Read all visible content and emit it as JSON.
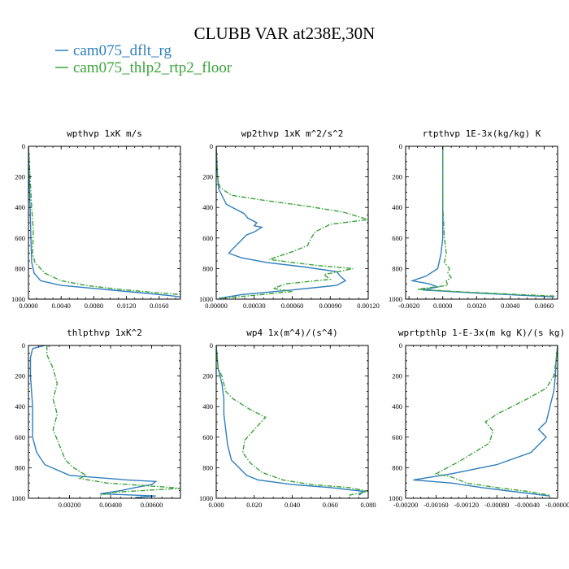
{
  "figure": {
    "title": "CLUBB VAR at238E,30N",
    "legend": [
      {
        "label": "cam075_dflt_rg",
        "color": "#2f7fbc",
        "dash": "solid"
      },
      {
        "label": "cam075_thlp2_rtp2_floor",
        "color": "#3aa33a",
        "dash": "dashdot"
      }
    ]
  },
  "chart_data": [
    {
      "type": "line",
      "title": "wpthvp  1xK m/s",
      "xlim": [
        0,
        0.0186
      ],
      "ylim": [
        1000,
        0
      ],
      "xticks": [
        0,
        0.004,
        0.008,
        0.012,
        0.016
      ],
      "xtick_labels": [
        "0.0000",
        "0.0040",
        "0.0080",
        "0.0120",
        "0.0160"
      ],
      "yticks": [
        0,
        200,
        400,
        600,
        800,
        1000
      ],
      "ytick_labels": [
        "0",
        "200",
        "400",
        "600",
        "800",
        "1000"
      ],
      "series": [
        {
          "name": "cam075_dflt_rg",
          "points": [
            [
              0,
              0
            ],
            [
              0.0001,
              200
            ],
            [
              0.0002,
              400
            ],
            [
              0.0003,
              600
            ],
            [
              0.0004,
              760
            ],
            [
              0.0007,
              830
            ],
            [
              0.0015,
              880
            ],
            [
              0.004,
              910
            ],
            [
              0.008,
              930
            ],
            [
              0.013,
              955
            ],
            [
              0.017,
              975
            ],
            [
              0.0186,
              985
            ]
          ]
        },
        {
          "name": "cam075_thlp2_rtp2_floor",
          "points": [
            [
              0,
              0
            ],
            [
              0.0002,
              200
            ],
            [
              0.0004,
              400
            ],
            [
              0.0006,
              550
            ],
            [
              0.0005,
              700
            ],
            [
              0.0008,
              760
            ],
            [
              0.002,
              830
            ],
            [
              0.004,
              880
            ],
            [
              0.007,
              910
            ],
            [
              0.011,
              935
            ],
            [
              0.015,
              955
            ],
            [
              0.0186,
              970
            ]
          ]
        }
      ]
    },
    {
      "type": "line",
      "title": "wp2thvp  1xK m^2/s^2",
      "xlim": [
        0,
        0.0012
      ],
      "ylim": [
        1000,
        0
      ],
      "xticks": [
        0,
        0.0003,
        0.0006,
        0.0009,
        0.0012
      ],
      "xtick_labels": [
        "0.00000",
        "0.00030",
        "0.00060",
        "0.00090",
        "0.00120"
      ],
      "yticks": [
        0,
        200,
        400,
        600,
        800,
        1000
      ],
      "ytick_labels": [
        "0",
        "200",
        "400",
        "600",
        "800",
        "1000"
      ],
      "series": [
        {
          "name": "cam075_dflt_rg",
          "points": [
            [
              0,
              0
            ],
            [
              1e-05,
              200
            ],
            [
              2e-05,
              280
            ],
            [
              8e-05,
              380
            ],
            [
              0.00022,
              440
            ],
            [
              0.00025,
              470
            ],
            [
              0.00032,
              500
            ],
            [
              0.0003,
              520
            ],
            [
              0.00036,
              530
            ],
            [
              0.0003,
              560
            ],
            [
              0.00024,
              580
            ],
            [
              0.00018,
              630
            ],
            [
              0.00012,
              680
            ],
            [
              0.0001,
              700
            ],
            [
              0.0002,
              730
            ],
            [
              0.0004,
              760
            ],
            [
              0.0007,
              790
            ],
            [
              0.00095,
              820
            ],
            [
              0.00098,
              850
            ],
            [
              0.00102,
              880
            ],
            [
              0.00095,
              910
            ],
            [
              0.0006,
              940
            ],
            [
              0.0002,
              970
            ],
            [
              2e-05,
              995
            ]
          ]
        },
        {
          "name": "cam075_thlp2_rtp2_floor",
          "points": [
            [
              0,
              0
            ],
            [
              1e-05,
              200
            ],
            [
              3e-05,
              270
            ],
            [
              0.00012,
              320
            ],
            [
              0.00035,
              350
            ],
            [
              0.0007,
              390
            ],
            [
              0.001,
              430
            ],
            [
              0.0012,
              480
            ],
            [
              0.0009,
              510
            ],
            [
              0.00078,
              560
            ],
            [
              0.00075,
              600
            ],
            [
              0.00072,
              650
            ],
            [
              0.0006,
              690
            ],
            [
              0.00042,
              740
            ],
            [
              0.0006,
              760
            ],
            [
              0.0008,
              780
            ],
            [
              0.00108,
              800
            ],
            [
              0.00085,
              840
            ],
            [
              0.0009,
              870
            ],
            [
              0.00055,
              900
            ],
            [
              0.00045,
              930
            ],
            [
              0.0006,
              950
            ],
            [
              0.0003,
              975
            ],
            [
              3e-05,
              995
            ]
          ]
        }
      ]
    },
    {
      "type": "line",
      "title": "rtpthvp  1E-3x(kg/kg) K",
      "xlim": [
        -0.0022,
        0.0068
      ],
      "ylim": [
        1000,
        0
      ],
      "xticks": [
        -0.002,
        0,
        0.002,
        0.004,
        0.006
      ],
      "xtick_labels": [
        "-0.0020",
        "0.0000",
        "0.0020",
        "0.0040",
        "0.0060"
      ],
      "yticks": [
        0,
        200,
        400,
        600,
        800,
        1000
      ],
      "ytick_labels": [
        "0",
        "200",
        "400",
        "600",
        "800",
        "1000"
      ],
      "series": [
        {
          "name": "cam075_dflt_rg",
          "points": [
            [
              0,
              0
            ],
            [
              0,
              400
            ],
            [
              0,
              600
            ],
            [
              -0.0001,
              700
            ],
            [
              -0.0003,
              800
            ],
            [
              -0.001,
              850
            ],
            [
              -0.0018,
              880
            ],
            [
              -0.0008,
              900
            ],
            [
              -0.0003,
              920
            ],
            [
              -0.0012,
              940
            ],
            [
              0.002,
              960
            ],
            [
              0.0066,
              985
            ]
          ]
        },
        {
          "name": "cam075_thlp2_rtp2_floor",
          "points": [
            [
              0,
              0
            ],
            [
              0,
              400
            ],
            [
              0.0001,
              600
            ],
            [
              0.0002,
              700
            ],
            [
              0.0001,
              760
            ],
            [
              0.0004,
              800
            ],
            [
              0.0003,
              830
            ],
            [
              0.0005,
              860
            ],
            [
              0.0002,
              880
            ],
            [
              0.0003,
              910
            ],
            [
              -0.0015,
              935
            ],
            [
              0.0015,
              955
            ],
            [
              0.0066,
              980
            ]
          ]
        }
      ]
    },
    {
      "type": "line",
      "title": "thlpthvp  1xK^2",
      "xlim": [
        0,
        0.0074
      ],
      "ylim": [
        1000,
        0
      ],
      "xticks": [
        0.002,
        0.004,
        0.006
      ],
      "xtick_labels": [
        "0.00200",
        "0.00400",
        "0.00600"
      ],
      "yticks": [
        0,
        200,
        400,
        600,
        800,
        1000
      ],
      "ytick_labels": [
        "0",
        "200",
        "400",
        "600",
        "800",
        "1000"
      ],
      "series": [
        {
          "name": "cam075_dflt_rg",
          "points": [
            [
              0.0008,
              0
            ],
            [
              0.0002,
              20
            ],
            [
              0.0001,
              80
            ],
            [
              0.0001,
              200
            ],
            [
              0.0002,
              400
            ],
            [
              0.0002,
              600
            ],
            [
              0.0004,
              700
            ],
            [
              0.0008,
              780
            ],
            [
              0.002,
              850
            ],
            [
              0.0048,
              880
            ],
            [
              0.0062,
              890
            ],
            [
              0.006,
              910
            ],
            [
              0.0052,
              930
            ],
            [
              0.0045,
              950
            ],
            [
              0.0035,
              970
            ],
            [
              0.0062,
              985
            ],
            [
              0.0052,
              995
            ]
          ]
        },
        {
          "name": "cam075_thlp2_rtp2_floor",
          "points": [
            [
              0.0009,
              0
            ],
            [
              0.0009,
              60
            ],
            [
              0.0012,
              150
            ],
            [
              0.0014,
              250
            ],
            [
              0.0012,
              350
            ],
            [
              0.0014,
              450
            ],
            [
              0.0012,
              550
            ],
            [
              0.0015,
              650
            ],
            [
              0.0018,
              750
            ],
            [
              0.0022,
              800
            ],
            [
              0.0028,
              850
            ],
            [
              0.0025,
              870
            ],
            [
              0.0038,
              900
            ],
            [
              0.0065,
              925
            ],
            [
              0.0074,
              935
            ],
            [
              0.0042,
              960
            ],
            [
              0.0035,
              980
            ]
          ]
        }
      ]
    },
    {
      "type": "line",
      "title": "wp4  1x(m^4)/(s^4)",
      "xlim": [
        0,
        0.08
      ],
      "ylim": [
        1000,
        0
      ],
      "xticks": [
        0,
        0.02,
        0.04,
        0.06,
        0.08
      ],
      "xtick_labels": [
        "0.000",
        "0.020",
        "0.040",
        "0.060",
        "0.080"
      ],
      "yticks": [
        0,
        200,
        400,
        600,
        800,
        1000
      ],
      "ytick_labels": [
        "0",
        "200",
        "400",
        "600",
        "800",
        "1000"
      ],
      "series": [
        {
          "name": "cam075_dflt_rg",
          "points": [
            [
              0,
              0
            ],
            [
              0.001,
              150
            ],
            [
              0.002,
              200
            ],
            [
              0.003,
              250
            ],
            [
              0.004,
              350
            ],
            [
              0.004,
              450
            ],
            [
              0.005,
              550
            ],
            [
              0.006,
              650
            ],
            [
              0.008,
              750
            ],
            [
              0.012,
              800
            ],
            [
              0.016,
              850
            ],
            [
              0.022,
              880
            ],
            [
              0.04,
              910
            ],
            [
              0.06,
              930
            ],
            [
              0.078,
              955
            ],
            [
              0.075,
              980
            ]
          ]
        },
        {
          "name": "cam075_thlp2_rtp2_floor",
          "points": [
            [
              0,
              0
            ],
            [
              0.001,
              150
            ],
            [
              0.003,
              200
            ],
            [
              0.005,
              300
            ],
            [
              0.009,
              350
            ],
            [
              0.018,
              420
            ],
            [
              0.026,
              470
            ],
            [
              0.02,
              550
            ],
            [
              0.015,
              620
            ],
            [
              0.014,
              700
            ],
            [
              0.018,
              770
            ],
            [
              0.024,
              830
            ],
            [
              0.035,
              880
            ],
            [
              0.05,
              910
            ],
            [
              0.07,
              930
            ],
            [
              0.08,
              955
            ],
            [
              0.07,
              980
            ]
          ]
        }
      ]
    },
    {
      "type": "line",
      "title": "wprtpthlp  1-E-3x(m kg K)/(s kg)",
      "xlim": [
        -0.002,
        0
      ],
      "ylim": [
        1000,
        0
      ],
      "xticks": [
        -0.002,
        -0.0016,
        -0.0012,
        -0.0008,
        -0.0004,
        0
      ],
      "xtick_labels": [
        "-0.00200",
        "-0.00160",
        "-0.00120",
        "-0.00080",
        "-0.00040",
        "-0.00000"
      ],
      "yticks": [
        0,
        200,
        400,
        600,
        800,
        1000
      ],
      "ytick_labels": [
        "0",
        "200",
        "400",
        "600",
        "800",
        "1000"
      ],
      "series": [
        {
          "name": "cam075_dflt_rg",
          "points": [
            [
              0,
              0
            ],
            [
              -2e-05,
              100
            ],
            [
              -3e-05,
              200
            ],
            [
              -5e-05,
              300
            ],
            [
              -0.0001,
              400
            ],
            [
              -0.00015,
              500
            ],
            [
              -0.00025,
              550
            ],
            [
              -0.00015,
              600
            ],
            [
              -0.00035,
              700
            ],
            [
              -0.0008,
              780
            ],
            [
              -0.0014,
              840
            ],
            [
              -0.0019,
              880
            ],
            [
              -0.0014,
              900
            ],
            [
              -0.001,
              930
            ],
            [
              -0.0006,
              955
            ],
            [
              -0.0001,
              985
            ]
          ]
        },
        {
          "name": "cam075_thlp2_rtp2_floor",
          "points": [
            [
              0,
              0
            ],
            [
              -2e-05,
              100
            ],
            [
              -5e-05,
              200
            ],
            [
              -0.00015,
              280
            ],
            [
              -0.0004,
              350
            ],
            [
              -0.0006,
              400
            ],
            [
              -0.0008,
              450
            ],
            [
              -0.00095,
              500
            ],
            [
              -0.00085,
              560
            ],
            [
              -0.0009,
              640
            ],
            [
              -0.0011,
              700
            ],
            [
              -0.0013,
              760
            ],
            [
              -0.0016,
              840
            ],
            [
              -0.0014,
              860
            ],
            [
              -0.0012,
              900
            ],
            [
              -0.0008,
              930
            ],
            [
              -0.0004,
              955
            ],
            [
              -0.0001,
              980
            ]
          ]
        }
      ]
    }
  ]
}
